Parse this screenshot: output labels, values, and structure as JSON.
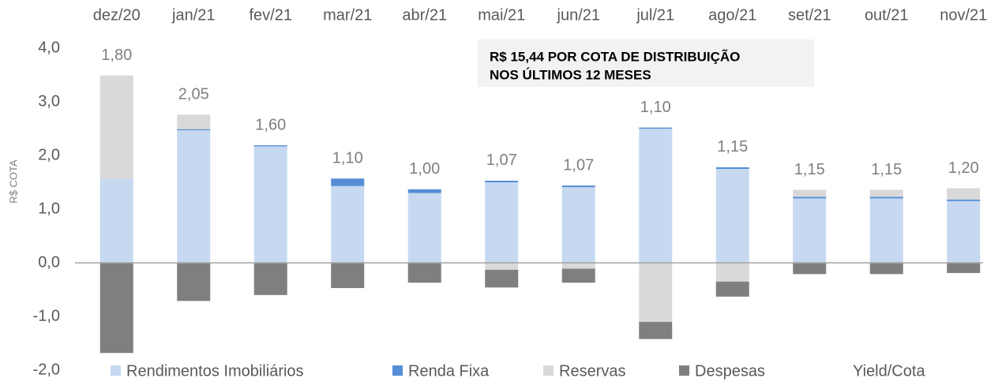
{
  "chart_data": {
    "type": "bar",
    "categories": [
      "dez/20",
      "jan/21",
      "fev/21",
      "mar/21",
      "abr/21",
      "mai/21",
      "jun/21",
      "jul/21",
      "ago/21",
      "set/21",
      "out/21",
      "nov/21"
    ],
    "series": [
      {
        "name": "Rendimentos Imobiliários",
        "color": "#c6d9f1",
        "values": [
          1.57,
          2.47,
          2.17,
          1.43,
          1.3,
          1.5,
          1.41,
          2.5,
          1.75,
          1.2,
          1.2,
          1.15
        ]
      },
      {
        "name": "Renda Fixa",
        "color": "#558ed5",
        "values": [
          0,
          0.02,
          0.02,
          0.14,
          0.07,
          0.03,
          0.03,
          0.02,
          0.03,
          0.03,
          0.03,
          0.03
        ]
      },
      {
        "name": "Reservas",
        "color": "#d9d9d9",
        "values": [
          1.92,
          0.27,
          0,
          0,
          0,
          -0.13,
          -0.11,
          -1.1,
          -0.35,
          0.13,
          0.13,
          0.21
        ]
      },
      {
        "name": "Despesas",
        "color": "#7f7f7f",
        "values": [
          -1.68,
          -0.71,
          -0.6,
          -0.47,
          -0.37,
          -0.33,
          -0.26,
          -0.32,
          -0.28,
          -0.21,
          -0.21,
          -0.19
        ]
      },
      {
        "name": "Yield/Cota",
        "color": "transparent",
        "values": [
          1.8,
          2.05,
          1.6,
          1.1,
          1.0,
          1.07,
          1.07,
          1.1,
          1.15,
          1.15,
          1.15,
          1.2
        ],
        "value_labels": [
          "1,80",
          "2,05",
          "1,60",
          "1,10",
          "1,00",
          "1,07",
          "1,07",
          "1,10",
          "1,15",
          "1,15",
          "1,15",
          "1,20"
        ]
      }
    ],
    "y_label": "R$ COTA",
    "annotation": [
      "R$ 15,44 POR COTA DE DISTRIBUIÇÃO",
      "NOS ÚLTIMOS 12 MESES"
    ],
    "ylim": [
      -2,
      4
    ],
    "yticks": [
      {
        "value": -2,
        "label": "-2,0"
      },
      {
        "value": -1,
        "label": "-1,0"
      },
      {
        "value": 0,
        "label": "0,0"
      },
      {
        "value": 1,
        "label": "1,0"
      },
      {
        "value": 2,
        "label": "2,0"
      },
      {
        "value": 3,
        "label": "3,0"
      },
      {
        "value": 4,
        "label": "4,0"
      }
    ],
    "grid": false,
    "legend": "bottom"
  }
}
